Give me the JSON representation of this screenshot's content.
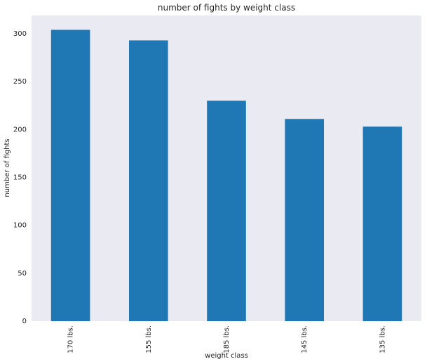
{
  "chart_data": {
    "type": "bar",
    "title": "number of fights by weight class",
    "xlabel": "weight class",
    "ylabel": "number of fights",
    "categories": [
      "170 lbs.",
      "155 lbs.",
      "185 lbs.",
      "145 lbs.",
      "135 lbs."
    ],
    "values": [
      304,
      293,
      230,
      211,
      203
    ],
    "ylim": [
      0,
      319
    ],
    "yticks": [
      "0",
      "50",
      "100",
      "150",
      "200",
      "250",
      "300"
    ],
    "grid": false,
    "bar_color": "#1f77b4",
    "background_color": "#eaeaf2",
    "x_tick_rotation": 90
  }
}
